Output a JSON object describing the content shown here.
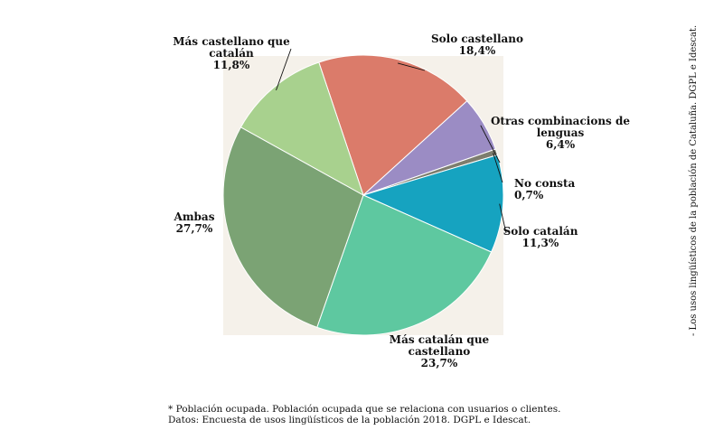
{
  "chart_data": {
    "type": "pie",
    "slices": [
      {
        "name": "Solo castellano",
        "label_lines": [
          "Solo castellano"
        ],
        "value": 18.4,
        "display": "18,4%",
        "color": "#db7b6a"
      },
      {
        "name": "Otras combinacions de lenguas",
        "label_lines": [
          "Otras combinacions de",
          "lenguas"
        ],
        "value": 6.4,
        "display": "6,4%",
        "color": "#9b8cc4"
      },
      {
        "name": "No consta",
        "label_lines": [
          "No consta"
        ],
        "value": 0.7,
        "display": "0,7%",
        "color": "#7d7d6e"
      },
      {
        "name": "Solo catalán",
        "label_lines": [
          "Solo catalán"
        ],
        "value": 11.3,
        "display": "11,3%",
        "color": "#16a3c0"
      },
      {
        "name": "Más catalán que castellano",
        "label_lines": [
          "Más catalán que",
          "castellano"
        ],
        "value": 23.7,
        "display": "23,7%",
        "color": "#5ec8a0"
      },
      {
        "name": "Ambas",
        "label_lines": [
          "Ambas"
        ],
        "value": 27.7,
        "display": "27,7%",
        "color": "#7ba374"
      },
      {
        "name": "Más castellano que catalán",
        "label_lines": [
          "Más castellano que",
          "catalán"
        ],
        "value": 11.8,
        "display": "11,8%",
        "color": "#a8d18e"
      }
    ],
    "background_color": "#f5f1ea"
  },
  "footnotes": {
    "line1": "* Población ocupada. Población ocupada que se relaciona con usuarios o clientes.",
    "line2": "Datos: Encuesta de usos lingüísticos de la población 2018. DGPL e Idescat."
  },
  "source_side": "- Los usos lingüísticos de la población de Cataluña. DGPL e Idescat."
}
